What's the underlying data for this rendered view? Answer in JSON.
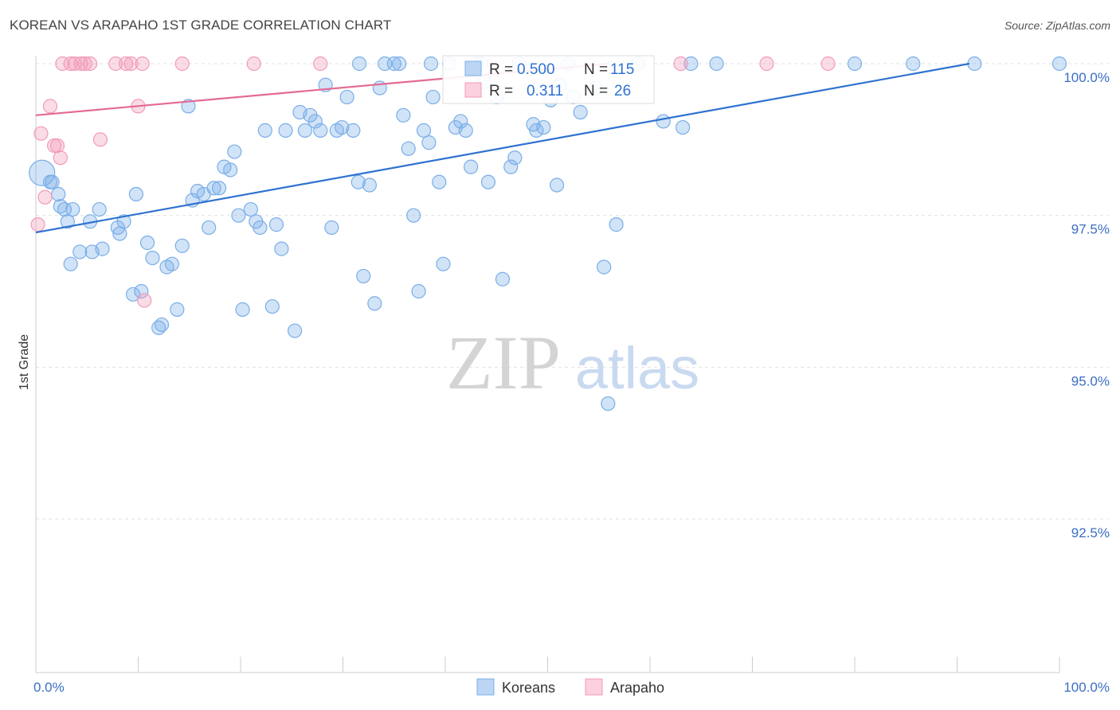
{
  "title": "KOREAN VS ARAPAHO 1ST GRADE CORRELATION CHART",
  "source": "Source: ZipAtlas.com",
  "watermark": {
    "zip": "ZIP",
    "atlas": "atlas"
  },
  "legend_box": {
    "rows": [
      {
        "r_label": "R =",
        "r_value": "0.500",
        "n_label": "N =",
        "n_value": "115"
      },
      {
        "r_label": "R =",
        "r_value": "0.311",
        "n_label": "N =",
        "n_value": "26"
      }
    ]
  },
  "bottom_legend": [
    "Koreans",
    "Arapaho"
  ],
  "chart_data": {
    "type": "scatter",
    "xlabel": "",
    "ylabel": "1st Grade",
    "xlim": [
      0,
      100
    ],
    "ylim": [
      90.0,
      100.4
    ],
    "x_tick_labels": [
      "0.0%",
      "100.0%"
    ],
    "y_ticks": [
      {
        "value": 100.0,
        "label": "100.0%"
      },
      {
        "value": 97.5,
        "label": "97.5%"
      },
      {
        "value": 95.0,
        "label": "95.0%"
      },
      {
        "value": 92.5,
        "label": "92.5%"
      }
    ],
    "grid": true,
    "legend": "top-center",
    "series": [
      {
        "name": "Koreans",
        "color": "#7aaee8",
        "line_color": "#2f72d0",
        "R": 0.5,
        "N": 115,
        "trend": [
          [
            0,
            97.22
          ],
          [
            91.2,
            100.0
          ]
        ],
        "points": [
          [
            0.6,
            98.2
          ],
          [
            1.4,
            98.05
          ],
          [
            1.6,
            98.05
          ],
          [
            2.2,
            97.85
          ],
          [
            2.4,
            97.65
          ],
          [
            2.8,
            97.6
          ],
          [
            3.6,
            97.6
          ],
          [
            3.1,
            97.4
          ],
          [
            3.4,
            96.7
          ],
          [
            4.3,
            96.9
          ],
          [
            5.3,
            97.4
          ],
          [
            5.5,
            96.9
          ],
          [
            6.2,
            97.6
          ],
          [
            6.5,
            96.95
          ],
          [
            8.0,
            97.3
          ],
          [
            8.2,
            97.2
          ],
          [
            8.6,
            97.4
          ],
          [
            9.5,
            96.2
          ],
          [
            9.8,
            97.85
          ],
          [
            10.3,
            96.25
          ],
          [
            10.9,
            97.05
          ],
          [
            11.4,
            96.8
          ],
          [
            12.0,
            95.65
          ],
          [
            12.3,
            95.7
          ],
          [
            12.8,
            96.65
          ],
          [
            13.3,
            96.7
          ],
          [
            13.8,
            95.95
          ],
          [
            14.3,
            97.0
          ],
          [
            14.9,
            99.3
          ],
          [
            15.3,
            97.75
          ],
          [
            15.8,
            97.9
          ],
          [
            16.4,
            97.85
          ],
          [
            16.9,
            97.3
          ],
          [
            17.4,
            97.95
          ],
          [
            17.9,
            97.95
          ],
          [
            18.4,
            98.3
          ],
          [
            19.0,
            98.25
          ],
          [
            19.4,
            98.55
          ],
          [
            19.8,
            97.5
          ],
          [
            20.2,
            95.95
          ],
          [
            21.0,
            97.6
          ],
          [
            21.5,
            97.4
          ],
          [
            21.9,
            97.3
          ],
          [
            22.4,
            98.9
          ],
          [
            23.1,
            96.0
          ],
          [
            23.5,
            97.35
          ],
          [
            24.0,
            96.95
          ],
          [
            24.4,
            98.9
          ],
          [
            25.3,
            95.6
          ],
          [
            25.8,
            99.2
          ],
          [
            26.3,
            98.9
          ],
          [
            26.8,
            99.15
          ],
          [
            27.3,
            99.05
          ],
          [
            27.8,
            98.9
          ],
          [
            28.3,
            99.65
          ],
          [
            28.9,
            97.3
          ],
          [
            29.4,
            98.9
          ],
          [
            29.9,
            98.95
          ],
          [
            30.4,
            99.45
          ],
          [
            31.0,
            98.9
          ],
          [
            31.5,
            98.05
          ],
          [
            32.0,
            96.5
          ],
          [
            32.6,
            98.0
          ],
          [
            33.1,
            96.05
          ],
          [
            33.6,
            99.6
          ],
          [
            34.1,
            100.0
          ],
          [
            35.0,
            100.0
          ],
          [
            35.5,
            100.0
          ],
          [
            35.9,
            99.15
          ],
          [
            36.4,
            98.6
          ],
          [
            36.9,
            97.5
          ],
          [
            37.4,
            96.25
          ],
          [
            37.9,
            98.9
          ],
          [
            38.4,
            98.7
          ],
          [
            38.8,
            99.45
          ],
          [
            39.4,
            98.05
          ],
          [
            39.8,
            96.7
          ],
          [
            40.4,
            100.0
          ],
          [
            41.0,
            98.95
          ],
          [
            41.5,
            99.05
          ],
          [
            42.0,
            98.9
          ],
          [
            42.5,
            98.3
          ],
          [
            43.0,
            100.0
          ],
          [
            43.5,
            100.0
          ],
          [
            44.2,
            98.05
          ],
          [
            45.0,
            99.45
          ],
          [
            45.6,
            96.45
          ],
          [
            46.4,
            98.3
          ],
          [
            46.8,
            98.45
          ],
          [
            47.2,
            100.0
          ],
          [
            48.6,
            99.0
          ],
          [
            48.9,
            98.9
          ],
          [
            49.6,
            98.95
          ],
          [
            50.3,
            99.4
          ],
          [
            50.9,
            98.0
          ],
          [
            51.2,
            99.65
          ],
          [
            52.0,
            100.0
          ],
          [
            52.5,
            99.45
          ],
          [
            53.2,
            99.2
          ],
          [
            54.7,
            99.6
          ],
          [
            55.5,
            96.65
          ],
          [
            55.9,
            94.4
          ],
          [
            56.7,
            97.35
          ],
          [
            58.8,
            100.0
          ],
          [
            61.3,
            99.05
          ],
          [
            63.2,
            98.95
          ],
          [
            64.0,
            100.0
          ],
          [
            66.5,
            100.0
          ],
          [
            80.0,
            100.0
          ],
          [
            85.7,
            100.0
          ],
          [
            91.7,
            100.0
          ],
          [
            100.0,
            100.0
          ],
          [
            31.6,
            100.0
          ],
          [
            43.8,
            99.7
          ],
          [
            38.6,
            100.0
          ]
        ]
      },
      {
        "name": "Arapaho",
        "color": "#f29ab8",
        "line_color": "#e46a94",
        "R": 0.311,
        "N": 26,
        "trend": [
          [
            0,
            99.15
          ],
          [
            56.0,
            100.0
          ]
        ],
        "points": [
          [
            0.2,
            97.35
          ],
          [
            0.5,
            98.85
          ],
          [
            0.9,
            97.8
          ],
          [
            1.4,
            99.3
          ],
          [
            1.8,
            98.65
          ],
          [
            2.1,
            98.65
          ],
          [
            2.4,
            98.45
          ],
          [
            2.6,
            100.0
          ],
          [
            3.4,
            100.0
          ],
          [
            3.8,
            100.0
          ],
          [
            4.4,
            100.0
          ],
          [
            4.8,
            100.0
          ],
          [
            5.3,
            100.0
          ],
          [
            6.3,
            98.75
          ],
          [
            7.8,
            100.0
          ],
          [
            8.8,
            100.0
          ],
          [
            9.3,
            100.0
          ],
          [
            10.0,
            99.3
          ],
          [
            10.4,
            100.0
          ],
          [
            10.6,
            96.1
          ],
          [
            14.3,
            100.0
          ],
          [
            21.3,
            100.0
          ],
          [
            27.8,
            100.0
          ],
          [
            63.0,
            100.0
          ],
          [
            71.4,
            100.0
          ],
          [
            77.4,
            100.0
          ]
        ]
      }
    ]
  }
}
